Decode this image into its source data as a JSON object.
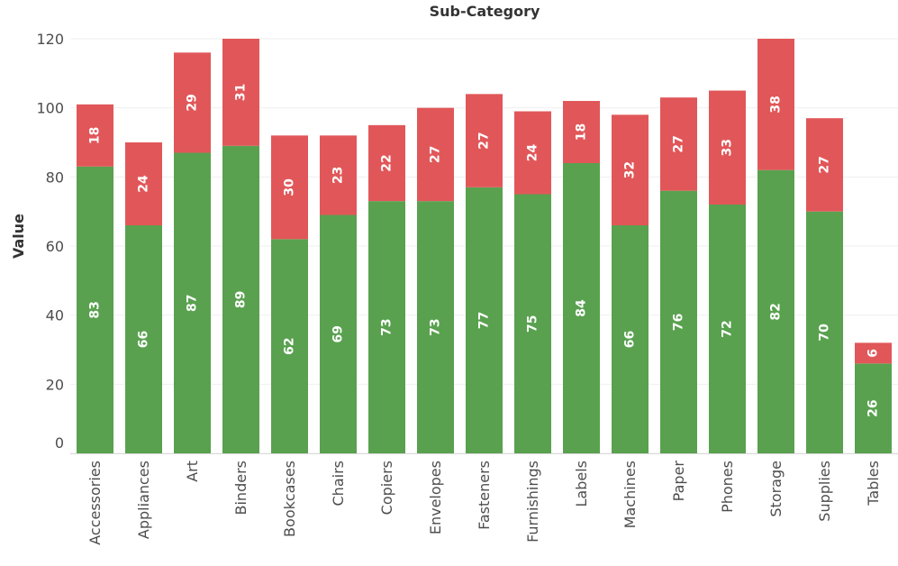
{
  "chart_data": {
    "type": "bar",
    "stacked": true,
    "title": "Sub-Category",
    "xlabel": "",
    "ylabel": "Value",
    "ylim": [
      0,
      120
    ],
    "yticks": [
      0,
      20,
      40,
      60,
      80,
      100,
      120
    ],
    "grid": true,
    "categories": [
      "Accessories",
      "Appliances",
      "Art",
      "Binders",
      "Bookcases",
      "Chairs",
      "Copiers",
      "Envelopes",
      "Fasteners",
      "Furnishings",
      "Labels",
      "Machines",
      "Paper",
      "Phones",
      "Storage",
      "Supplies",
      "Tables"
    ],
    "series": [
      {
        "color": "#59a14f",
        "values": [
          83,
          66,
          87,
          89,
          62,
          69,
          73,
          73,
          77,
          75,
          84,
          66,
          76,
          72,
          82,
          70,
          26
        ]
      },
      {
        "color": "#e15759",
        "values": [
          18,
          24,
          29,
          31,
          30,
          23,
          22,
          27,
          27,
          24,
          18,
          32,
          27,
          33,
          38,
          27,
          6
        ]
      }
    ]
  }
}
